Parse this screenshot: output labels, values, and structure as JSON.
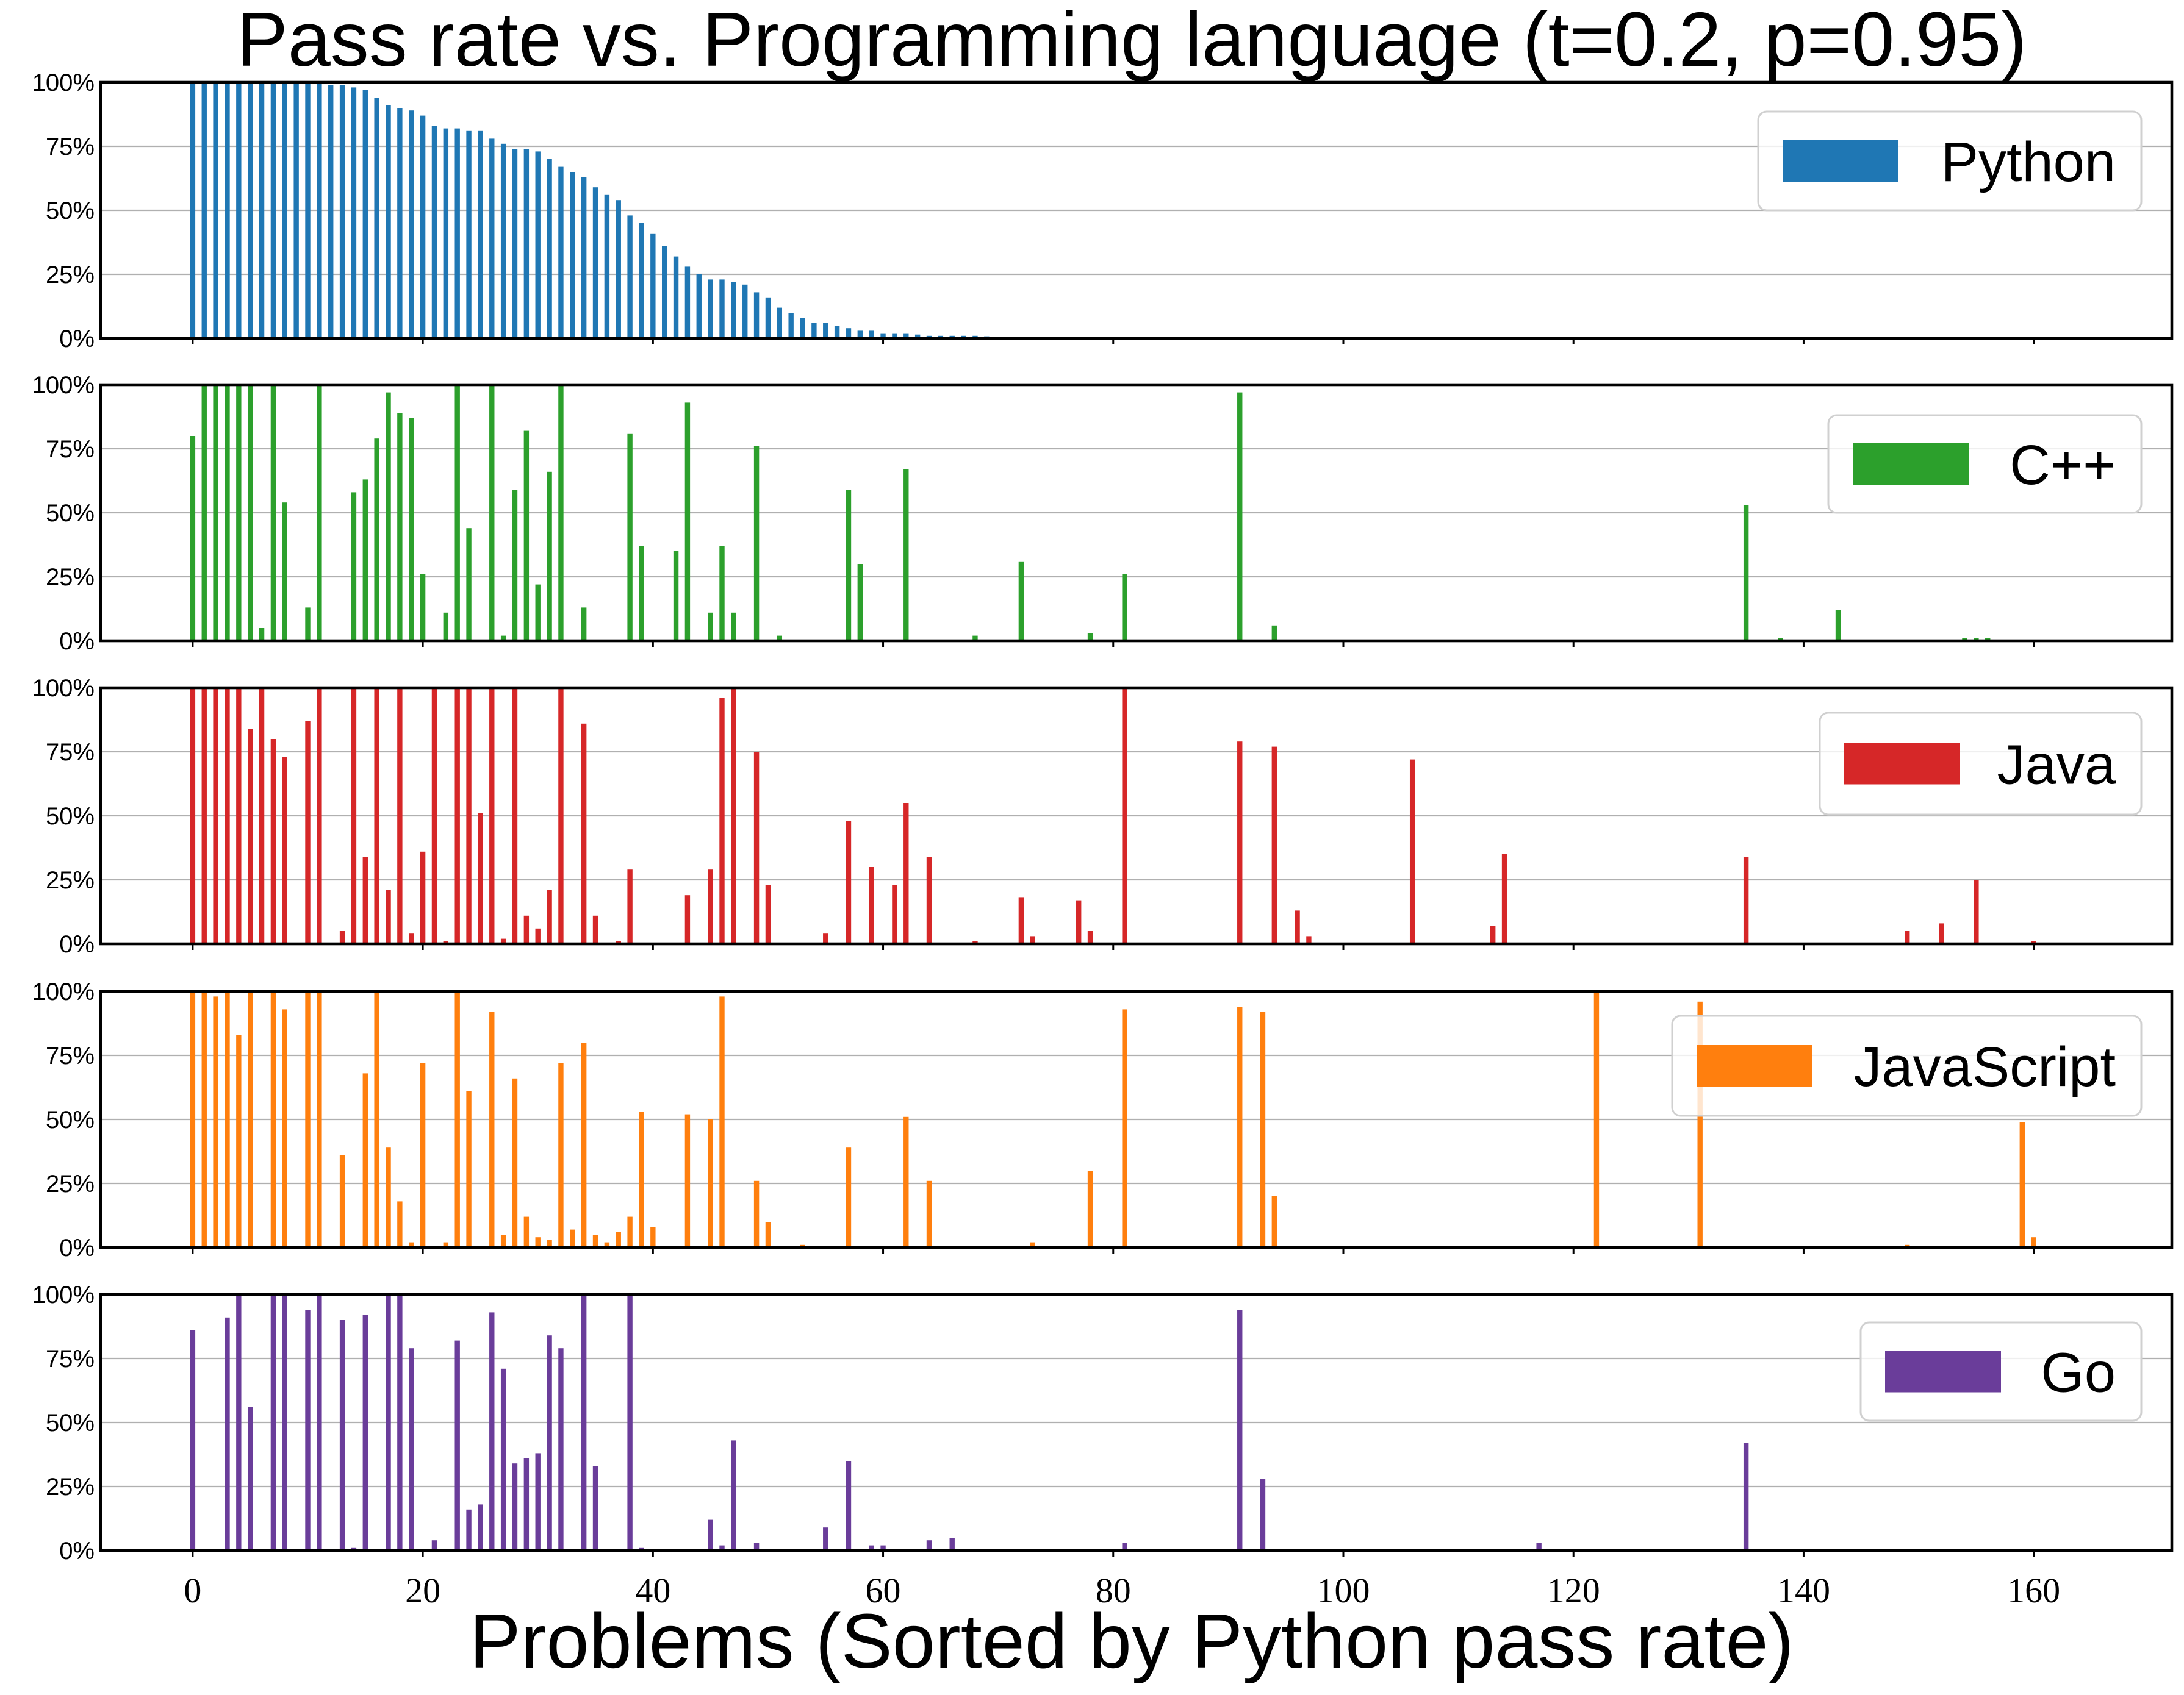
{
  "chart_data": {
    "type": "bar",
    "title": "Pass rate vs. Programming language (t=0.2, p=0.95)",
    "xlabel": "Problems (Sorted by Python pass rate)",
    "ylabel": "",
    "xlim": [
      -8,
      172
    ],
    "ylim": [
      0,
      1
    ],
    "xticks": [
      0,
      20,
      40,
      60,
      80,
      100,
      120,
      140,
      160
    ],
    "xtick_labels": [
      "0",
      "20",
      "40",
      "60",
      "80",
      "100",
      "120",
      "140",
      "160"
    ],
    "yticks": [
      0,
      0.25,
      0.5,
      0.75,
      1.0
    ],
    "ytick_labels": [
      "0%",
      "25%",
      "50%",
      "75%",
      "100%"
    ],
    "grid": "horizontal",
    "legend_position": "right",
    "panels": [
      {
        "name": "Python",
        "color": "#1f77b4",
        "values": [
          1,
          1,
          1,
          1,
          1,
          1,
          1,
          1,
          1,
          1,
          1,
          1,
          0.99,
          0.99,
          0.98,
          0.97,
          0.94,
          0.91,
          0.9,
          0.89,
          0.87,
          0.83,
          0.82,
          0.82,
          0.81,
          0.81,
          0.78,
          0.76,
          0.74,
          0.74,
          0.73,
          0.7,
          0.67,
          0.65,
          0.63,
          0.59,
          0.56,
          0.54,
          0.48,
          0.45,
          0.41,
          0.36,
          0.32,
          0.28,
          0.25,
          0.23,
          0.23,
          0.22,
          0.21,
          0.18,
          0.16,
          0.12,
          0.1,
          0.08,
          0.06,
          0.06,
          0.05,
          0.04,
          0.03,
          0.03,
          0.02,
          0.02,
          0.02,
          0.015,
          0.01,
          0.01,
          0.01,
          0.01,
          0.01,
          0.008,
          0.006,
          0.005,
          0.004,
          0.003
        ],
        "points": []
      },
      {
        "name": "C++",
        "color": "#2ca02c",
        "values": [],
        "points": [
          [
            0,
            0.8
          ],
          [
            1,
            1.0
          ],
          [
            2,
            1.0
          ],
          [
            3,
            1.0
          ],
          [
            4,
            1.0
          ],
          [
            5,
            1.0
          ],
          [
            6,
            0.05
          ],
          [
            7,
            1.0
          ],
          [
            8,
            0.54
          ],
          [
            10,
            0.13
          ],
          [
            11,
            1.0
          ],
          [
            14,
            0.58
          ],
          [
            15,
            0.63
          ],
          [
            16,
            0.79
          ],
          [
            17,
            0.97
          ],
          [
            18,
            0.89
          ],
          [
            19,
            0.87
          ],
          [
            20,
            0.26
          ],
          [
            22,
            0.11
          ],
          [
            23,
            1.0
          ],
          [
            24,
            0.44
          ],
          [
            26,
            1.0
          ],
          [
            27,
            0.02
          ],
          [
            28,
            0.59
          ],
          [
            29,
            0.82
          ],
          [
            30,
            0.22
          ],
          [
            31,
            0.66
          ],
          [
            32,
            1.0
          ],
          [
            34,
            0.13
          ],
          [
            38,
            0.81
          ],
          [
            39,
            0.37
          ],
          [
            42,
            0.35
          ],
          [
            43,
            0.93
          ],
          [
            45,
            0.11
          ],
          [
            46,
            0.37
          ],
          [
            47,
            0.11
          ],
          [
            49,
            0.76
          ],
          [
            51,
            0.02
          ],
          [
            57,
            0.59
          ],
          [
            58,
            0.3
          ],
          [
            62,
            0.67
          ],
          [
            68,
            0.02
          ],
          [
            72,
            0.31
          ],
          [
            78,
            0.03
          ],
          [
            81,
            0.26
          ],
          [
            91,
            0.97
          ],
          [
            94,
            0.06
          ],
          [
            135,
            0.53
          ],
          [
            138,
            0.01
          ],
          [
            143,
            0.12
          ],
          [
            154,
            0.01
          ],
          [
            155,
            0.01
          ],
          [
            156,
            0.01
          ]
        ]
      },
      {
        "name": "Java",
        "color": "#d62728",
        "values": [],
        "points": [
          [
            0,
            1.0
          ],
          [
            1,
            1.0
          ],
          [
            2,
            1.0
          ],
          [
            3,
            1.0
          ],
          [
            4,
            1.0
          ],
          [
            5,
            0.84
          ],
          [
            6,
            1.0
          ],
          [
            7,
            0.8
          ],
          [
            8,
            0.73
          ],
          [
            10,
            0.87
          ],
          [
            11,
            1.0
          ],
          [
            13,
            0.05
          ],
          [
            14,
            1.0
          ],
          [
            15,
            0.34
          ],
          [
            16,
            1.0
          ],
          [
            17,
            0.21
          ],
          [
            18,
            1.0
          ],
          [
            19,
            0.04
          ],
          [
            20,
            0.36
          ],
          [
            21,
            1.0
          ],
          [
            22,
            0.01
          ],
          [
            23,
            1.0
          ],
          [
            24,
            1.0
          ],
          [
            25,
            0.51
          ],
          [
            26,
            1.0
          ],
          [
            27,
            0.02
          ],
          [
            28,
            1.0
          ],
          [
            29,
            0.11
          ],
          [
            30,
            0.06
          ],
          [
            31,
            0.21
          ],
          [
            32,
            1.0
          ],
          [
            34,
            0.86
          ],
          [
            35,
            0.11
          ],
          [
            37,
            0.01
          ],
          [
            38,
            0.29
          ],
          [
            43,
            0.19
          ],
          [
            45,
            0.29
          ],
          [
            46,
            0.96
          ],
          [
            47,
            1.0
          ],
          [
            49,
            0.75
          ],
          [
            50,
            0.23
          ],
          [
            55,
            0.04
          ],
          [
            57,
            0.48
          ],
          [
            59,
            0.3
          ],
          [
            61,
            0.23
          ],
          [
            62,
            0.55
          ],
          [
            64,
            0.34
          ],
          [
            68,
            0.01
          ],
          [
            72,
            0.18
          ],
          [
            73,
            0.03
          ],
          [
            77,
            0.17
          ],
          [
            78,
            0.05
          ],
          [
            81,
            1.0
          ],
          [
            91,
            0.79
          ],
          [
            94,
            0.77
          ],
          [
            96,
            0.13
          ],
          [
            97,
            0.03
          ],
          [
            106,
            0.72
          ],
          [
            113,
            0.07
          ],
          [
            114,
            0.35
          ],
          [
            135,
            0.34
          ],
          [
            149,
            0.05
          ],
          [
            152,
            0.08
          ],
          [
            155,
            0.25
          ],
          [
            160,
            0.01
          ]
        ]
      },
      {
        "name": "JavaScript",
        "color": "#ff7f0e",
        "values": [],
        "points": [
          [
            0,
            1.0
          ],
          [
            1,
            1.0
          ],
          [
            2,
            0.98
          ],
          [
            3,
            1.0
          ],
          [
            4,
            0.83
          ],
          [
            5,
            1.0
          ],
          [
            7,
            1.0
          ],
          [
            8,
            0.93
          ],
          [
            10,
            1.0
          ],
          [
            11,
            1.0
          ],
          [
            13,
            0.36
          ],
          [
            15,
            0.68
          ],
          [
            16,
            1.0
          ],
          [
            17,
            0.39
          ],
          [
            18,
            0.18
          ],
          [
            19,
            0.02
          ],
          [
            20,
            0.72
          ],
          [
            22,
            0.02
          ],
          [
            23,
            1.0
          ],
          [
            24,
            0.61
          ],
          [
            26,
            0.92
          ],
          [
            27,
            0.05
          ],
          [
            28,
            0.66
          ],
          [
            29,
            0.12
          ],
          [
            30,
            0.04
          ],
          [
            31,
            0.03
          ],
          [
            32,
            0.72
          ],
          [
            33,
            0.07
          ],
          [
            34,
            0.8
          ],
          [
            35,
            0.05
          ],
          [
            36,
            0.02
          ],
          [
            37,
            0.06
          ],
          [
            38,
            0.12
          ],
          [
            39,
            0.53
          ],
          [
            40,
            0.08
          ],
          [
            43,
            0.52
          ],
          [
            45,
            0.5
          ],
          [
            46,
            0.98
          ],
          [
            49,
            0.26
          ],
          [
            50,
            0.1
          ],
          [
            53,
            0.01
          ],
          [
            57,
            0.39
          ],
          [
            62,
            0.51
          ],
          [
            64,
            0.26
          ],
          [
            73,
            0.02
          ],
          [
            78,
            0.3
          ],
          [
            81,
            0.93
          ],
          [
            91,
            0.94
          ],
          [
            93,
            0.92
          ],
          [
            94,
            0.2
          ],
          [
            122,
            1.0
          ],
          [
            131,
            0.96
          ],
          [
            149,
            0.01
          ],
          [
            159,
            0.49
          ],
          [
            160,
            0.04
          ]
        ]
      },
      {
        "name": "Go",
        "color": "#6a3d9a",
        "values": [],
        "points": [
          [
            0,
            0.86
          ],
          [
            3,
            0.91
          ],
          [
            4,
            1.0
          ],
          [
            5,
            0.56
          ],
          [
            7,
            1.0
          ],
          [
            8,
            1.0
          ],
          [
            10,
            0.94
          ],
          [
            11,
            1.0
          ],
          [
            13,
            0.9
          ],
          [
            14,
            0.01
          ],
          [
            15,
            0.92
          ],
          [
            17,
            1.0
          ],
          [
            18,
            1.0
          ],
          [
            19,
            0.79
          ],
          [
            21,
            0.04
          ],
          [
            23,
            0.82
          ],
          [
            24,
            0.16
          ],
          [
            25,
            0.18
          ],
          [
            26,
            0.93
          ],
          [
            27,
            0.71
          ],
          [
            28,
            0.34
          ],
          [
            29,
            0.36
          ],
          [
            30,
            0.38
          ],
          [
            31,
            0.84
          ],
          [
            32,
            0.79
          ],
          [
            34,
            1.0
          ],
          [
            35,
            0.33
          ],
          [
            38,
            1.0
          ],
          [
            39,
            0.01
          ],
          [
            45,
            0.12
          ],
          [
            46,
            0.02
          ],
          [
            47,
            0.43
          ],
          [
            49,
            0.03
          ],
          [
            55,
            0.09
          ],
          [
            57,
            0.35
          ],
          [
            59,
            0.02
          ],
          [
            60,
            0.02
          ],
          [
            64,
            0.04
          ],
          [
            66,
            0.05
          ],
          [
            81,
            0.03
          ],
          [
            91,
            0.94
          ],
          [
            93,
            0.28
          ],
          [
            117,
            0.03
          ],
          [
            135,
            0.42
          ]
        ]
      }
    ]
  }
}
